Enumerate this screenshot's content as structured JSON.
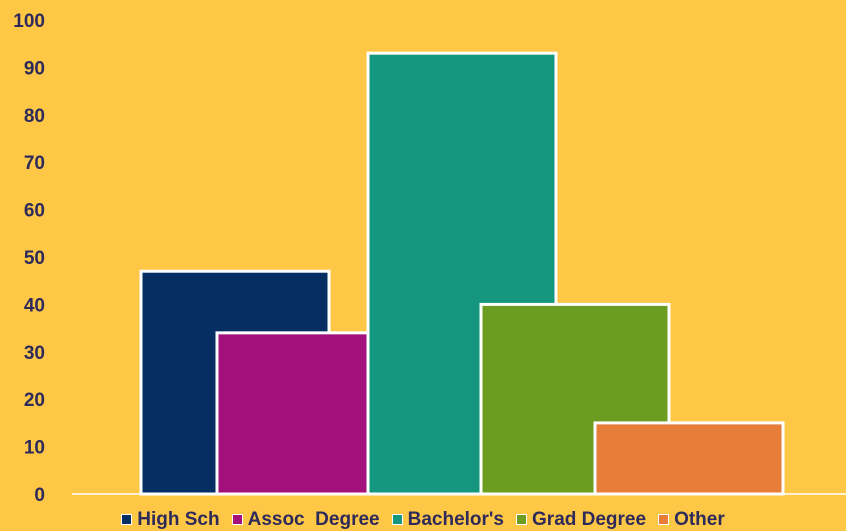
{
  "chart_data": {
    "type": "bar",
    "categories": [
      "High Sch",
      "Assoc  Degree",
      "Bachelor's",
      "Grad Degree",
      "Other"
    ],
    "values": [
      47,
      34,
      93,
      40,
      15
    ],
    "colors": [
      "#052E62",
      "#A3107C",
      "#15977F",
      "#6C9D21",
      "#E67D39"
    ],
    "title": "",
    "xlabel": "",
    "ylabel": "",
    "ylim": [
      0,
      100
    ],
    "yticks": [
      "0",
      "10",
      "20",
      "30",
      "40",
      "50",
      "60",
      "70",
      "80",
      "90",
      "100"
    ],
    "grid": false,
    "legend_position": "bottom",
    "background_color": "#FEC746",
    "axis_text_color": "#2E2A5A",
    "bar_outline_color": "#FFFFFF"
  }
}
